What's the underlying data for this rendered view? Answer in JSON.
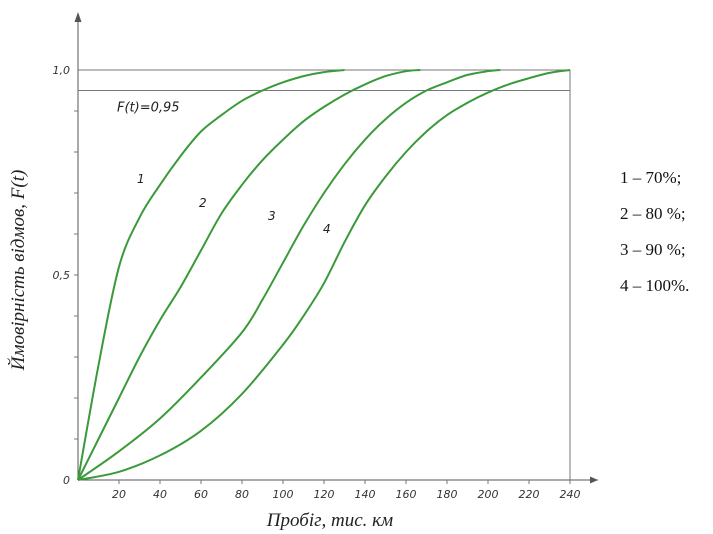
{
  "chart_data": {
    "type": "line",
    "xlabel": "Пробіг, тис. км",
    "ylabel": "Ймовірність відмов, F(t)",
    "xlim": [
      0,
      240
    ],
    "ylim": [
      0,
      1.0
    ],
    "x_ticks": [
      "20",
      "40",
      "60",
      "80",
      "100",
      "120",
      "140",
      "160",
      "180",
      "200",
      "220",
      "240"
    ],
    "y_ticks": [
      {
        "value": 0,
        "label": "0"
      },
      {
        "value": 0.5,
        "label": "0,5"
      },
      {
        "value": 1.0,
        "label": "1,0"
      }
    ],
    "reference_line": {
      "value": 0.95,
      "label": "F(t)=0,95"
    },
    "series": [
      {
        "name": "1",
        "color": "#3a9a3a",
        "x": [
          0,
          10,
          20,
          30,
          40,
          50,
          60,
          70,
          80,
          90,
          100,
          110,
          120,
          130
        ],
        "y": [
          0,
          0.28,
          0.52,
          0.64,
          0.72,
          0.79,
          0.85,
          0.89,
          0.925,
          0.95,
          0.97,
          0.985,
          0.995,
          1.0
        ]
      },
      {
        "name": "2",
        "color": "#3a9a3a",
        "x": [
          0,
          10,
          20,
          30,
          40,
          50,
          60,
          70,
          80,
          90,
          100,
          110,
          120,
          130,
          140,
          150,
          160,
          167
        ],
        "y": [
          0,
          0.1,
          0.2,
          0.3,
          0.39,
          0.47,
          0.56,
          0.65,
          0.72,
          0.78,
          0.83,
          0.875,
          0.91,
          0.94,
          0.965,
          0.985,
          0.997,
          1.0
        ]
      },
      {
        "name": "3",
        "color": "#3a9a3a",
        "x": [
          0,
          20,
          40,
          60,
          80,
          90,
          100,
          110,
          120,
          130,
          140,
          150,
          160,
          170,
          180,
          190,
          200,
          206
        ],
        "y": [
          0,
          0.07,
          0.15,
          0.25,
          0.36,
          0.44,
          0.53,
          0.62,
          0.7,
          0.77,
          0.83,
          0.88,
          0.92,
          0.95,
          0.97,
          0.988,
          0.997,
          1.0
        ]
      },
      {
        "name": "4",
        "color": "#3a9a3a",
        "x": [
          0,
          20,
          40,
          60,
          80,
          100,
          110,
          120,
          130,
          140,
          150,
          160,
          170,
          180,
          190,
          200,
          210,
          220,
          230,
          240
        ],
        "y": [
          0,
          0.02,
          0.06,
          0.12,
          0.21,
          0.33,
          0.4,
          0.48,
          0.58,
          0.67,
          0.74,
          0.8,
          0.85,
          0.89,
          0.92,
          0.945,
          0.965,
          0.98,
          0.993,
          1.0
        ]
      }
    ]
  },
  "legend": [
    "1 – 70%;",
    "2 – 80 %;",
    "3 – 90 %;",
    "4 – 100%."
  ]
}
